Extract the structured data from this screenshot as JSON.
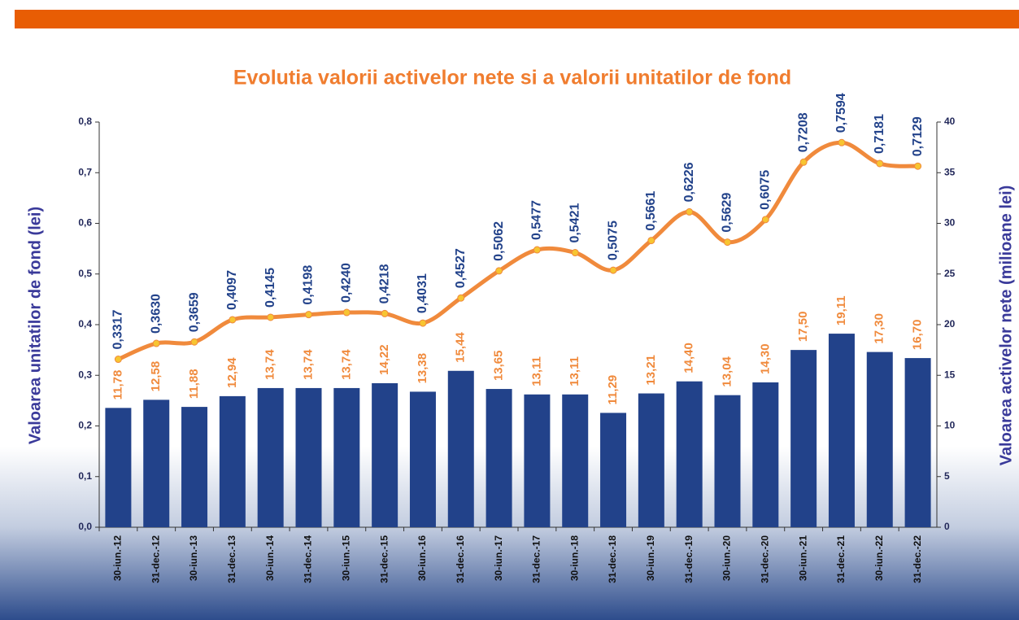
{
  "chart_data": {
    "type": "bar_line",
    "title": "Evolutia valorii activelor nete si a valorii unitatilor de fond",
    "ylabel": "Valoarea unitatilor de fond (lei)",
    "y2label": "Valoarea activelor nete (milioane lei)",
    "categories": [
      "30-iun.-12",
      "31-dec.-12",
      "30-iun.-13",
      "31-dec.-13",
      "30-iun.-14",
      "31-dec.-14",
      "30-iun.-15",
      "31-dec.-15",
      "30-iun.-16",
      "31-dec.-16",
      "30-iun.-17",
      "31-dec.-17",
      "30-iun.-18",
      "31-dec.-18",
      "30-iun.-19",
      "31-dec.-19",
      "30-iun.-20",
      "31-dec.-20",
      "30-iun.-21",
      "31-dec.-21",
      "30-iun.-22",
      "31-dec.-22"
    ],
    "series": [
      {
        "type": "bar",
        "axis": "y2",
        "color": "#22428a",
        "label_color": "#f08a3c",
        "values": [
          11.78,
          12.58,
          11.88,
          12.94,
          13.74,
          13.74,
          13.74,
          14.22,
          13.38,
          15.44,
          13.65,
          13.11,
          13.11,
          11.29,
          13.21,
          14.4,
          13.04,
          14.3,
          17.5,
          19.11,
          17.3,
          16.7
        ],
        "value_labels": [
          "11,78",
          "12,58",
          "11,88",
          "12,94",
          "13,74",
          "13,74",
          "13,74",
          "14,22",
          "13,38",
          "15,44",
          "13,65",
          "13,11",
          "13,11",
          "11,29",
          "13,21",
          "14,40",
          "13,04",
          "14,30",
          "17,50",
          "19,11",
          "17,30",
          "16,70"
        ]
      },
      {
        "type": "line",
        "axis": "y",
        "color": "#f08a3c",
        "marker_color": "#f7c531",
        "label_color": "#22428a",
        "values": [
          0.3317,
          0.363,
          0.3659,
          0.4097,
          0.4145,
          0.4198,
          0.424,
          0.4218,
          0.4031,
          0.4527,
          0.5062,
          0.5477,
          0.5421,
          0.5075,
          0.5661,
          0.6226,
          0.5629,
          0.6075,
          0.7208,
          0.7594,
          0.7181,
          0.7129
        ],
        "value_labels": [
          "0,3317",
          "0,3630",
          "0,3659",
          "0,4097",
          "0,4145",
          "0,4198",
          "0,4240",
          "0,4218",
          "0,4031",
          "0,4527",
          "0,5062",
          "0,5477",
          "0,5421",
          "0,5075",
          "0,5661",
          "0,6226",
          "0,5629",
          "0,6075",
          "0,7208",
          "0,7594",
          "0,7181",
          "0,7129"
        ]
      }
    ],
    "ylim": [
      0,
      0.8
    ],
    "yticks": [
      {
        "value": 0,
        "label": "0,0"
      },
      {
        "value": 0.1,
        "label": "0,1"
      },
      {
        "value": 0.2,
        "label": "0,2"
      },
      {
        "value": 0.3,
        "label": "0,3"
      },
      {
        "value": 0.4,
        "label": "0,4"
      },
      {
        "value": 0.5,
        "label": "0,5"
      },
      {
        "value": 0.6,
        "label": "0,6"
      },
      {
        "value": 0.7,
        "label": "0,7"
      },
      {
        "value": 0.8,
        "label": "0,8"
      }
    ],
    "y2lim": [
      0,
      40
    ],
    "y2ticks": [
      0,
      5,
      10,
      15,
      20,
      25,
      30,
      35,
      40
    ]
  }
}
